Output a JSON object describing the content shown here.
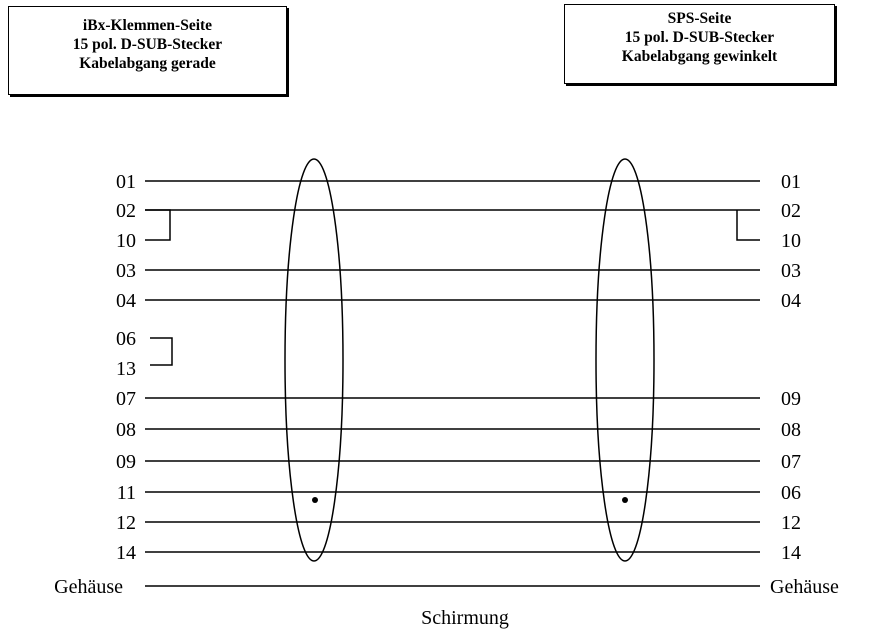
{
  "left_box": {
    "line1": "iBx-Klemmen-Seite",
    "line2": "15 pol. D-SUB-Stecker",
    "line3": "Kabelabgang gerade"
  },
  "right_box": {
    "line1": "SPS-Seite",
    "line2": "15 pol. D-SUB-Stecker",
    "line3": "Kabelabgang gewinkelt"
  },
  "wires": [
    {
      "left": "01",
      "right": "01"
    },
    {
      "left": "02",
      "right": "02"
    },
    {
      "left": "03",
      "right": "03"
    },
    {
      "left": "04",
      "right": "04"
    },
    {
      "left": "07",
      "right": "09"
    },
    {
      "left": "08",
      "right": "08"
    },
    {
      "left": "09",
      "right": "07"
    },
    {
      "left": "11",
      "right": "06"
    },
    {
      "left": "12",
      "right": "12"
    },
    {
      "left": "14",
      "right": "14"
    }
  ],
  "left_bridges": [
    {
      "top": "02",
      "bottom": "10"
    },
    {
      "top": "06",
      "bottom": "13"
    }
  ],
  "right_bridge_label": "10",
  "housing": {
    "left": "Gehäuse",
    "right": "Gehäuse"
  },
  "shield_label": "Schirmung"
}
